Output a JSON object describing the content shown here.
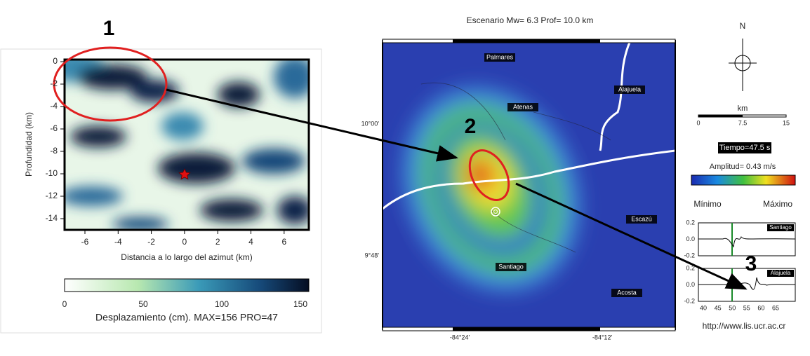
{
  "left_panel": {
    "annotation": "1",
    "y_axis_label": "Profundidad (km)",
    "x_axis_label": "Distancia a lo largo del azimut (km)",
    "y_ticks": [
      "0",
      "-2",
      "-4",
      "-6",
      "-8",
      "-10",
      "-12",
      "-14"
    ],
    "x_ticks": [
      "-6",
      "-4",
      "-2",
      "0",
      "2",
      "4",
      "6"
    ],
    "colorbar_ticks": [
      "0",
      "50",
      "100",
      "150"
    ],
    "colorbar_label": "Desplazamiento (cm). MAX=156 PRO=47"
  },
  "right_panel": {
    "title": "Escenario Mw= 6.3 Prof= 10.0 km",
    "places": [
      "Palmares",
      "Alajuela",
      "Atenas",
      "Escazú",
      "Santiago",
      "Acosta"
    ],
    "lat_labels": [
      "10°00'",
      "9°48'"
    ],
    "lon_labels": [
      "-84°24'",
      "-84°12'"
    ],
    "north": "N",
    "scale_unit": "km",
    "scale_ticks": [
      "0",
      "7.5",
      "15"
    ],
    "time": "Tiempo=47.5 s",
    "amplitude": "Amplitud= 0.43 m/s",
    "min_label": "Mínimo",
    "max_label": "Máximo",
    "stations": [
      "Santiago",
      "Alajuela"
    ],
    "seis_y_ticks": [
      "0.2",
      "0.0",
      "-0.2"
    ],
    "seis_x_ticks": [
      "40",
      "45",
      "50",
      "55",
      "60",
      "65"
    ],
    "url": "http://www.lis.ucr.ac.cr",
    "annotations": [
      "2",
      "3"
    ]
  }
}
